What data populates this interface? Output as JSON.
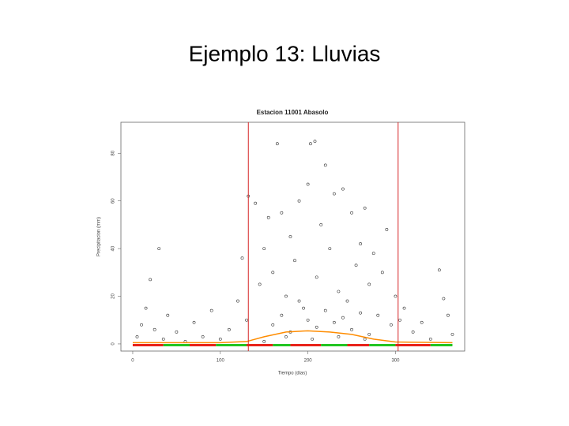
{
  "slide_title": "Ejemplo 13: Lluvias",
  "chart_data": {
    "type": "scatter",
    "title": "Estacion 11001 Abasolo",
    "x_label": "Tiempo (dias)",
    "y_label": "Precipitacion (mm)",
    "xlim": [
      -13.5,
      379
    ],
    "ylim": [
      -3,
      93
    ],
    "xticks": [
      0,
      100,
      200,
      300
    ],
    "yticks": [
      0,
      20,
      40,
      60,
      80
    ],
    "color": "#333333",
    "x": [
      5,
      10,
      15,
      20,
      25,
      30,
      35,
      40,
      50,
      60,
      70,
      80,
      90,
      100,
      110,
      120,
      125,
      130,
      132,
      140,
      145,
      150,
      155,
      160,
      165,
      170,
      175,
      180,
      185,
      190,
      195,
      200,
      203,
      208,
      210,
      215,
      220,
      225,
      230,
      235,
      240,
      245,
      250,
      255,
      260,
      265,
      270,
      275,
      280,
      285,
      290,
      295,
      300,
      305,
      310,
      320,
      330,
      340,
      350,
      355,
      360,
      365,
      160,
      170,
      180,
      190,
      200,
      210,
      220,
      230,
      240,
      250,
      260,
      270,
      175,
      205,
      235,
      150,
      265
    ],
    "y": [
      3,
      8,
      15,
      27,
      6,
      40,
      2,
      12,
      5,
      1,
      9,
      3,
      14,
      2,
      6,
      18,
      36,
      10,
      62,
      59,
      25,
      40,
      53,
      30,
      84,
      55,
      20,
      45,
      35,
      60,
      15,
      67,
      84,
      85,
      28,
      50,
      75,
      40,
      63,
      22,
      65,
      18,
      55,
      33,
      42,
      57,
      25,
      38,
      12,
      30,
      48,
      8,
      20,
      10,
      15,
      5,
      9,
      2,
      31,
      19,
      12,
      4,
      8,
      12,
      5,
      18,
      10,
      7,
      14,
      9,
      11,
      6,
      13,
      4,
      3,
      2,
      3,
      1,
      2
    ],
    "vlines": {
      "color": "#d62728",
      "values": [
        132,
        303
      ]
    },
    "smooth": {
      "color": "#ff8c00",
      "x": [
        0,
        50,
        100,
        130,
        150,
        175,
        200,
        225,
        250,
        275,
        300,
        365
      ],
      "y": [
        0.5,
        0.5,
        0.5,
        1,
        3,
        5,
        5.5,
        5,
        4,
        2,
        0.8,
        0.5
      ]
    },
    "segments": [
      {
        "color": "#e8231a",
        "x": [
          0,
          35
        ]
      },
      {
        "color": "#22c522",
        "x": [
          35,
          65
        ]
      },
      {
        "color": "#e8231a",
        "x": [
          65,
          95
        ]
      },
      {
        "color": "#22c522",
        "x": [
          95,
          130
        ]
      },
      {
        "color": "#e8231a",
        "x": [
          130,
          160
        ]
      },
      {
        "color": "#22c522",
        "x": [
          160,
          180
        ]
      },
      {
        "color": "#e8231a",
        "x": [
          180,
          215
        ]
      },
      {
        "color": "#22c522",
        "x": [
          215,
          245
        ]
      },
      {
        "color": "#e8231a",
        "x": [
          245,
          270
        ]
      },
      {
        "color": "#22c522",
        "x": [
          270,
          300
        ]
      },
      {
        "color": "#e8231a",
        "x": [
          300,
          340
        ]
      },
      {
        "color": "#22c522",
        "x": [
          340,
          365
        ]
      }
    ],
    "segment_y": -0.5
  }
}
